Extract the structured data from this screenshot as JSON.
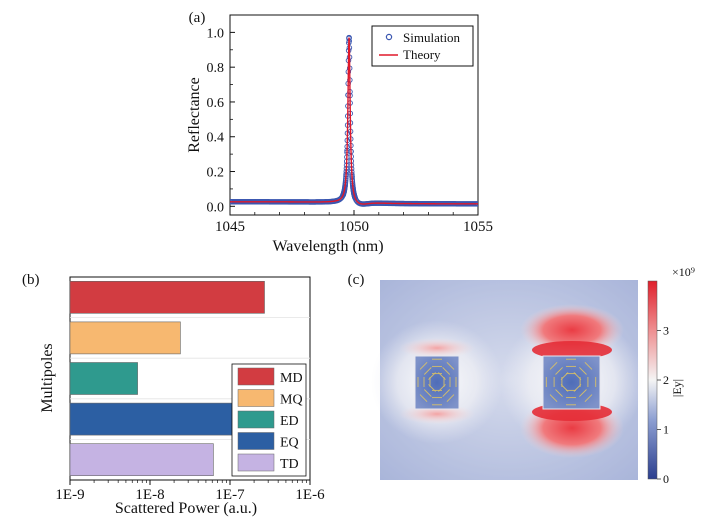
{
  "chart_data": [
    {
      "panel_label": "(a)",
      "type": "line",
      "xlabel": "Wavelength (nm)",
      "ylabel": "Reflectance",
      "xlim": [
        1045,
        1055
      ],
      "ylim": [
        -0.05,
        1.1
      ],
      "xticks": [
        "1045",
        "1050",
        "1055"
      ],
      "xtick_values": [
        1045,
        1050,
        1055
      ],
      "yticks": [
        "0.0",
        "0.2",
        "0.4",
        "0.6",
        "0.8",
        "1.0"
      ],
      "ytick_values": [
        0.0,
        0.2,
        0.4,
        0.6,
        0.8,
        1.0
      ],
      "legend": [
        "Simulation",
        "Theory"
      ],
      "legend_position": "top-right",
      "resonance": {
        "center": 1049.8,
        "peak": 0.98,
        "linewidth": 0.055,
        "baseline": 0.02,
        "dip": 1050.15
      },
      "series": [
        {
          "name": "Simulation",
          "style": "markers",
          "color": "#3a56b0"
        },
        {
          "name": "Theory",
          "style": "line",
          "color": "#e0182a"
        }
      ]
    },
    {
      "panel_label": "(b)",
      "type": "bar",
      "orientation": "horizontal",
      "xscale": "log",
      "xlabel": "Scattered Power (a.u.)",
      "ylabel": "Multipoles",
      "xlim": [
        1e-09,
        1e-06
      ],
      "xticks": [
        "1E-9",
        "1E-8",
        "1E-7",
        "1E-6"
      ],
      "xtick_values": [
        1e-09,
        1e-08,
        1e-07,
        1e-06
      ],
      "categories": [
        "MD",
        "MQ",
        "ED",
        "EQ",
        "TD"
      ],
      "values": [
        2.7e-07,
        2.4e-08,
        7e-09,
        1.4e-07,
        6.2e-08
      ],
      "colors": [
        "#d23c41",
        "#f7b870",
        "#2f9a8e",
        "#2c5fa3",
        "#c5b3e3"
      ],
      "legend_position": "bottom-right"
    },
    {
      "panel_label": "(c)",
      "type": "heatmap",
      "colorbar_label": "|Ey|",
      "colorbar_exponent": "×10⁹",
      "colorbar_range": [
        0,
        4
      ],
      "colorbar_ticks": [
        "0",
        "1",
        "2",
        "3"
      ],
      "colorbar_tick_values": [
        0,
        1,
        2,
        3
      ]
    }
  ]
}
